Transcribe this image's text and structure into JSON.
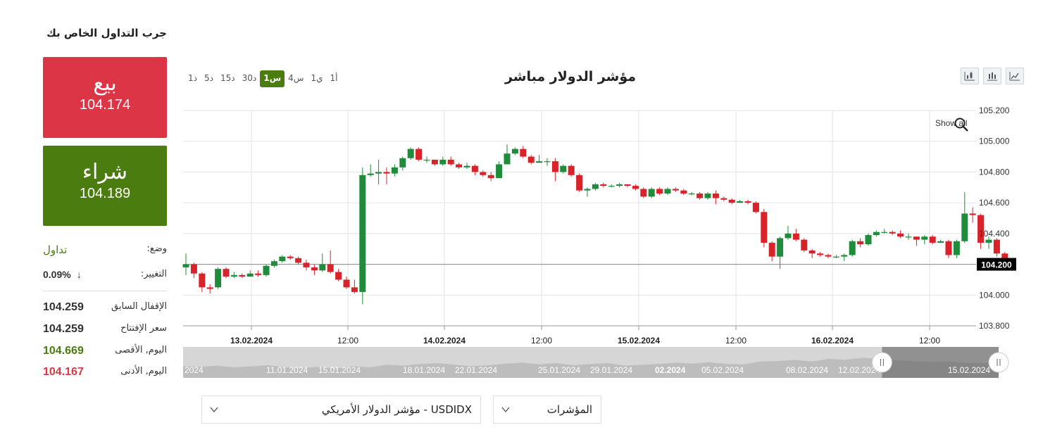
{
  "panel": {
    "title": "جرب التداول الخاص بك",
    "sell": {
      "label": "بيع",
      "price": "104.174"
    },
    "buy": {
      "label": "شراء",
      "price": "104.189"
    },
    "status": {
      "label": "وضع:",
      "value": "تداول"
    },
    "change": {
      "label": "التغيير:",
      "value": "0.09%",
      "direction": "down"
    },
    "prev_close": {
      "label": "الإقفال السابق",
      "value": "104.259"
    },
    "open": {
      "label": "سعر الإفتتاح",
      "value": "104.259"
    },
    "high": {
      "label": "اليوم, الأقصى",
      "value": "104.669"
    },
    "low": {
      "label": "اليوم, الأدنى",
      "value": "104.167"
    },
    "colors": {
      "sell": "#dc3545",
      "buy": "#4a7c0f"
    }
  },
  "chart_header": {
    "title": "مؤشر الدولار مباشر",
    "timeframes": [
      "1د",
      "5د",
      "15د",
      "30د",
      "1س",
      "4س",
      "1ي",
      "1أ"
    ],
    "active_timeframe": "1س",
    "tools": [
      "candlestick-chart-icon",
      "ohlc-bars-icon",
      "line-chart-icon"
    ],
    "show_all": "Show all"
  },
  "chart_data": {
    "type": "candlestick",
    "y_axis": {
      "min": 103.8,
      "max": 105.2,
      "ticks": [
        "105.200",
        "105.000",
        "104.800",
        "104.600",
        "104.400",
        "104.200",
        "104.000",
        "103.800"
      ]
    },
    "x_ticks": [
      {
        "label": "13.02.2024",
        "bold": true
      },
      {
        "label": "12:00",
        "bold": false
      },
      {
        "label": "14.02.2024",
        "bold": true
      },
      {
        "label": "12:00",
        "bold": false
      },
      {
        "label": "15.02.2024",
        "bold": true
      },
      {
        "label": "12:00",
        "bold": false
      },
      {
        "label": "16.02.2024",
        "bold": true
      },
      {
        "label": "12:00",
        "bold": false
      }
    ],
    "current_price": "104.200",
    "colors": {
      "up": "#1e8c3a",
      "down": "#d8232a"
    },
    "candles": [
      [
        104.18,
        104.2,
        104.27,
        104.13
      ],
      [
        104.2,
        104.14,
        104.21,
        104.11
      ],
      [
        104.14,
        104.05,
        104.15,
        104.02
      ],
      [
        104.05,
        104.04,
        104.07,
        104.01
      ],
      [
        104.05,
        104.17,
        104.18,
        104.04
      ],
      [
        104.17,
        104.12,
        104.18,
        104.11
      ],
      [
        104.12,
        104.13,
        104.15,
        104.11
      ],
      [
        104.13,
        104.12,
        104.14,
        104.11
      ],
      [
        104.12,
        104.14,
        104.16,
        104.12
      ],
      [
        104.14,
        104.13,
        104.16,
        104.12
      ],
      [
        104.13,
        104.19,
        104.2,
        104.12
      ],
      [
        104.19,
        104.22,
        104.23,
        104.18
      ],
      [
        104.22,
        104.25,
        104.26,
        104.21
      ],
      [
        104.25,
        104.24,
        104.26,
        104.23
      ],
      [
        104.24,
        104.21,
        104.25,
        104.2
      ],
      [
        104.21,
        104.18,
        104.23,
        104.16
      ],
      [
        104.18,
        104.16,
        104.2,
        104.13
      ],
      [
        104.16,
        104.2,
        104.27,
        104.15
      ],
      [
        104.2,
        104.15,
        104.29,
        104.14
      ],
      [
        104.15,
        104.1,
        104.17,
        104.09
      ],
      [
        104.1,
        104.05,
        104.12,
        104.04
      ],
      [
        104.05,
        104.02,
        104.1,
        104.01
      ],
      [
        104.02,
        104.78,
        104.83,
        103.94
      ],
      [
        104.78,
        104.79,
        104.85,
        104.77
      ],
      [
        104.79,
        104.8,
        104.88,
        104.72
      ],
      [
        104.8,
        104.79,
        104.83,
        104.72
      ],
      [
        104.79,
        104.83,
        104.85,
        104.77
      ],
      [
        104.83,
        104.89,
        104.9,
        104.81
      ],
      [
        104.89,
        104.95,
        104.96,
        104.88
      ],
      [
        104.95,
        104.88,
        104.96,
        104.87
      ],
      [
        104.88,
        104.88,
        104.9,
        104.86
      ],
      [
        104.88,
        104.85,
        104.88,
        104.84
      ],
      [
        104.85,
        104.88,
        104.9,
        104.84
      ],
      [
        104.88,
        104.85,
        104.9,
        104.84
      ],
      [
        104.85,
        104.83,
        104.86,
        104.82
      ],
      [
        104.83,
        104.84,
        104.86,
        104.82
      ],
      [
        104.84,
        104.8,
        104.85,
        104.78
      ],
      [
        104.8,
        104.78,
        104.81,
        104.77
      ],
      [
        104.78,
        104.76,
        104.8,
        104.74
      ],
      [
        104.76,
        104.85,
        104.87,
        104.76
      ],
      [
        104.85,
        104.92,
        104.98,
        104.85
      ],
      [
        104.92,
        104.95,
        104.96,
        104.91
      ],
      [
        104.95,
        104.9,
        104.97,
        104.89
      ],
      [
        104.9,
        104.86,
        104.91,
        104.85
      ],
      [
        104.86,
        104.87,
        104.91,
        104.86
      ],
      [
        104.87,
        104.87,
        104.89,
        104.84
      ],
      [
        104.87,
        104.8,
        104.89,
        104.74
      ],
      [
        104.8,
        104.84,
        104.85,
        104.79
      ],
      [
        104.84,
        104.78,
        104.85,
        104.77
      ],
      [
        104.78,
        104.68,
        104.79,
        104.67
      ],
      [
        104.68,
        104.69,
        104.7,
        104.64
      ],
      [
        104.69,
        104.72,
        104.73,
        104.68
      ],
      [
        104.72,
        104.71,
        104.73,
        104.7
      ],
      [
        104.71,
        104.71,
        104.72,
        104.7
      ],
      [
        104.71,
        104.72,
        104.73,
        104.7
      ],
      [
        104.72,
        104.71,
        104.72,
        104.7
      ],
      [
        104.71,
        104.69,
        104.72,
        104.68
      ],
      [
        104.69,
        104.64,
        104.7,
        104.63
      ],
      [
        104.64,
        104.69,
        104.7,
        104.63
      ],
      [
        104.69,
        104.66,
        104.7,
        104.65
      ],
      [
        104.66,
        104.69,
        104.7,
        104.65
      ],
      [
        104.69,
        104.68,
        104.7,
        104.67
      ],
      [
        104.68,
        104.66,
        104.69,
        104.65
      ],
      [
        104.66,
        104.66,
        104.67,
        104.65
      ],
      [
        104.66,
        104.63,
        104.67,
        104.62
      ],
      [
        104.63,
        104.66,
        104.67,
        104.62
      ],
      [
        104.66,
        104.63,
        104.68,
        104.59
      ],
      [
        104.63,
        104.62,
        104.64,
        104.61
      ],
      [
        104.62,
        104.6,
        104.63,
        104.59
      ],
      [
        104.6,
        104.61,
        104.62,
        104.6
      ],
      [
        104.61,
        104.6,
        104.62,
        104.59
      ],
      [
        104.6,
        104.54,
        104.61,
        104.53
      ],
      [
        104.54,
        104.34,
        104.56,
        104.31
      ],
      [
        104.34,
        104.25,
        104.35,
        104.22
      ],
      [
        104.25,
        104.37,
        104.38,
        104.17
      ],
      [
        104.37,
        104.4,
        104.45,
        104.36
      ],
      [
        104.4,
        104.36,
        104.43,
        104.35
      ],
      [
        104.36,
        104.29,
        104.37,
        104.28
      ],
      [
        104.29,
        104.27,
        104.3,
        104.24
      ],
      [
        104.27,
        104.26,
        104.28,
        104.25
      ],
      [
        104.26,
        104.25,
        104.27,
        104.24
      ],
      [
        104.25,
        104.25,
        104.26,
        104.24
      ],
      [
        104.25,
        104.26,
        104.27,
        104.22
      ],
      [
        104.26,
        104.35,
        104.36,
        104.25
      ],
      [
        104.35,
        104.33,
        104.37,
        104.31
      ],
      [
        104.33,
        104.39,
        104.4,
        104.32
      ],
      [
        104.39,
        104.41,
        104.42,
        104.38
      ],
      [
        104.41,
        104.41,
        104.43,
        104.4
      ],
      [
        104.41,
        104.4,
        104.42,
        104.39
      ],
      [
        104.4,
        104.38,
        104.42,
        104.37
      ],
      [
        104.38,
        104.38,
        104.4,
        104.36
      ],
      [
        104.38,
        104.36,
        104.38,
        104.32
      ],
      [
        104.36,
        104.38,
        104.39,
        104.33
      ],
      [
        104.38,
        104.34,
        104.39,
        104.33
      ],
      [
        104.34,
        104.35,
        104.36,
        104.34
      ],
      [
        104.35,
        104.26,
        104.36,
        104.24
      ],
      [
        104.26,
        104.35,
        104.36,
        104.24
      ],
      [
        104.35,
        104.53,
        104.67,
        104.34
      ],
      [
        104.53,
        104.52,
        104.57,
        104.47
      ],
      [
        104.52,
        104.34,
        104.53,
        104.3
      ],
      [
        104.34,
        104.36,
        104.38,
        104.3
      ],
      [
        104.36,
        104.27,
        104.37,
        104.25
      ],
      [
        104.27,
        104.24,
        104.28,
        104.23
      ]
    ]
  },
  "navigator": {
    "labels": [
      "2024",
      "11.01.2024",
      "15.01.2024",
      "18.01.2024",
      "22.01.2024",
      "25.01.2024",
      "29.01.2024",
      "02.2024",
      "05.02.2024",
      "08.02.2024",
      "12.02.2024",
      "15.02.2024"
    ],
    "range": {
      "from_fraction": 0.857,
      "to_fraction": 1.0
    }
  },
  "selects": {
    "indices": "المؤشرات",
    "symbol": "USDIDX - مؤشر الدولار الأمريكي"
  }
}
